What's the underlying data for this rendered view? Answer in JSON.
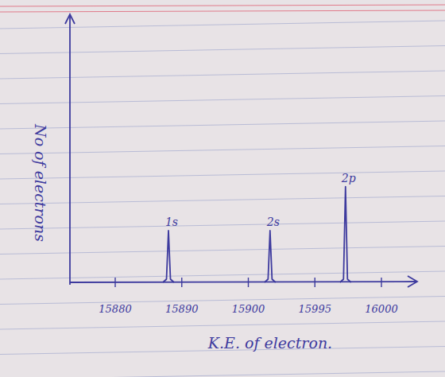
{
  "chart_data": {
    "type": "line",
    "x_label": "K.E. of electron.",
    "y_label": "No of electrons",
    "x": [
      15888,
      15931,
      15997.3
    ],
    "values": [
      20,
      20,
      37
    ],
    "peak_labels": [
      "1s",
      "2s",
      "2p"
    ],
    "xlim": [
      15873,
      16003
    ],
    "xticks": [
      15880,
      15890,
      15900,
      15995,
      16000
    ],
    "ylim": [
      0,
      100
    ],
    "tick_labels": "x",
    "color": "#3d3a9e"
  }
}
